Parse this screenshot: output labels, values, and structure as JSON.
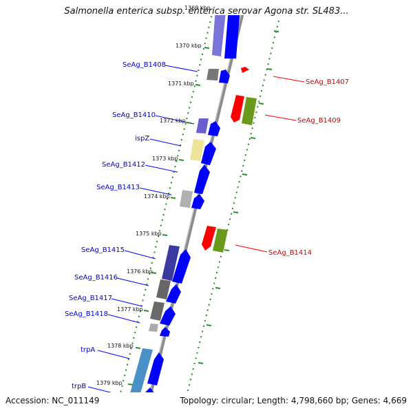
{
  "title": "Salmonella enterica subsp. enterica serovar Agona str. SL483...",
  "accession": "Accession: NC_011149",
  "topology": "Topology: circular; Length: 4,798,660 bp; Genes: 4,669",
  "colors": {
    "backbone": "#8a8a8a",
    "cds_forward": "#0000ff",
    "cds_reverse": "#ff0000",
    "ruler_tick": "#2e8b2e",
    "label_forward": "#0000cc",
    "label_reverse": "#cc0000"
  },
  "ruler": [
    {
      "text": "1369 kbp"
    },
    {
      "text": "1370 kbp"
    },
    {
      "text": "1371 kbp"
    },
    {
      "text": "1372 kbp"
    },
    {
      "text": "1373 kbp"
    },
    {
      "text": "1374 kbp"
    },
    {
      "text": "1375 kbp"
    },
    {
      "text": "1376 kbp"
    },
    {
      "text": "1377 kbp"
    },
    {
      "text": "1378 kbp"
    },
    {
      "text": "1379 kbp"
    }
  ],
  "forward_labels": [
    {
      "text": "SeAg_B1408"
    },
    {
      "text": "SeAg_B1410"
    },
    {
      "text": "ispZ"
    },
    {
      "text": "SeAg_B1412"
    },
    {
      "text": "SeAg_B1413"
    },
    {
      "text": "SeAg_B1415"
    },
    {
      "text": "SeAg_B1416"
    },
    {
      "text": "SeAg_B1417"
    },
    {
      "text": "SeAg_B1418"
    },
    {
      "text": "trpA"
    },
    {
      "text": "trpB"
    }
  ],
  "reverse_labels": [
    {
      "text": "SeAg_B1407"
    },
    {
      "text": "SeAg_B1409"
    },
    {
      "text": "SeAg_B1414"
    }
  ]
}
